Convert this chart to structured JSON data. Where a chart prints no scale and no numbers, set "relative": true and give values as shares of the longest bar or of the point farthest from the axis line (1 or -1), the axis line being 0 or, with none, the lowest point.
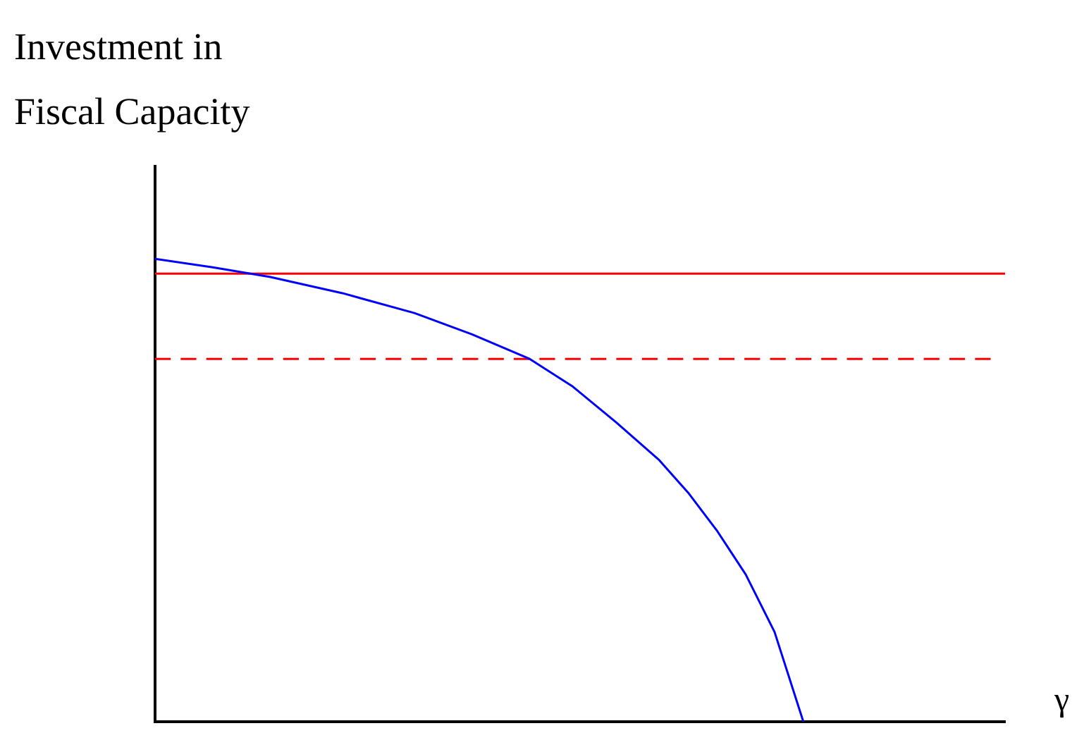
{
  "chart_data": {
    "type": "line",
    "relative": true,
    "ylabel": "Investment in\nFiscal Capacity",
    "xlabel": "γ",
    "categories": [
      null,
      null,
      null,
      null,
      null,
      null,
      null,
      null,
      null,
      null,
      null,
      null,
      null,
      null,
      null,
      null,
      null,
      null,
      null,
      null,
      null,
      null,
      null,
      null,
      null,
      null,
      null,
      null,
      null,
      null,
      null,
      null,
      null,
      null,
      null,
      null,
      null,
      null,
      null,
      null,
      null,
      null,
      null,
      null,
      null,
      null,
      null,
      null,
      null,
      null,
      null,
      null,
      null,
      null,
      null,
      null,
      null,
      null,
      null,
      null
    ],
    "series": [
      {
        "color": "#0000ff",
        "values": [
          1,
          null,
          null,
          null,
          0.982,
          null,
          null,
          null,
          0.961,
          null,
          null,
          null,
          null,
          0.926,
          null,
          null,
          null,
          null,
          0.883,
          null,
          null,
          null,
          0.837,
          null,
          null,
          null,
          0.784,
          null,
          null,
          0.724,
          null,
          null,
          0.647,
          null,
          null,
          0.565,
          null,
          0.495,
          null,
          0.413,
          null,
          0.318,
          null,
          0.194,
          null,
          0,
          null,
          null,
          null,
          null,
          null,
          null,
          null,
          null,
          null,
          null,
          null,
          null,
          null,
          null
        ]
      },
      {
        "color": "#ff0000",
        "values": [
          0.968,
          0.968,
          0.968,
          0.968,
          0.968,
          0.968,
          0.968,
          0.968,
          0.968,
          0.968,
          0.968,
          0.968,
          0.968,
          0.968,
          0.968,
          0.968,
          0.968,
          0.968,
          0.968,
          0.968,
          0.968,
          0.968,
          0.968,
          0.968,
          0.968,
          0.968,
          0.968,
          0.968,
          0.968,
          0.968,
          0.968,
          0.968,
          0.968,
          0.968,
          0.968,
          0.968,
          0.968,
          0.968,
          0.968,
          0.968,
          0.968,
          0.968,
          0.968,
          0.968,
          0.968,
          0.968,
          0.968,
          0.968,
          0.968,
          0.968,
          0.968,
          0.968,
          0.968,
          0.968,
          0.968,
          0.968,
          0.968,
          0.968,
          0.968,
          0.968
        ]
      },
      {
        "color": "#ff0000",
        "line_style": "dashed",
        "values": [
          0.784,
          0.784,
          0.784,
          0.784,
          0.784,
          0.784,
          0.784,
          0.784,
          0.784,
          0.784,
          0.784,
          0.784,
          0.784,
          0.784,
          0.784,
          0.784,
          0.784,
          0.784,
          0.784,
          0.784,
          0.784,
          0.784,
          0.784,
          0.784,
          0.784,
          0.784,
          0.784,
          0.784,
          0.784,
          0.784,
          0.784,
          0.784,
          0.784,
          0.784,
          0.784,
          0.784,
          0.784,
          0.784,
          0.784,
          0.784,
          0.784,
          0.784,
          0.784,
          0.784,
          0.784,
          0.784,
          0.784,
          0.784,
          0.784,
          0.784,
          0.784,
          0.784,
          0.784,
          0.784,
          0.784,
          0.784,
          0.784,
          0.784,
          0.784,
          null
        ]
      }
    ],
    "legend": false,
    "grid": false,
    "marker": "none"
  }
}
